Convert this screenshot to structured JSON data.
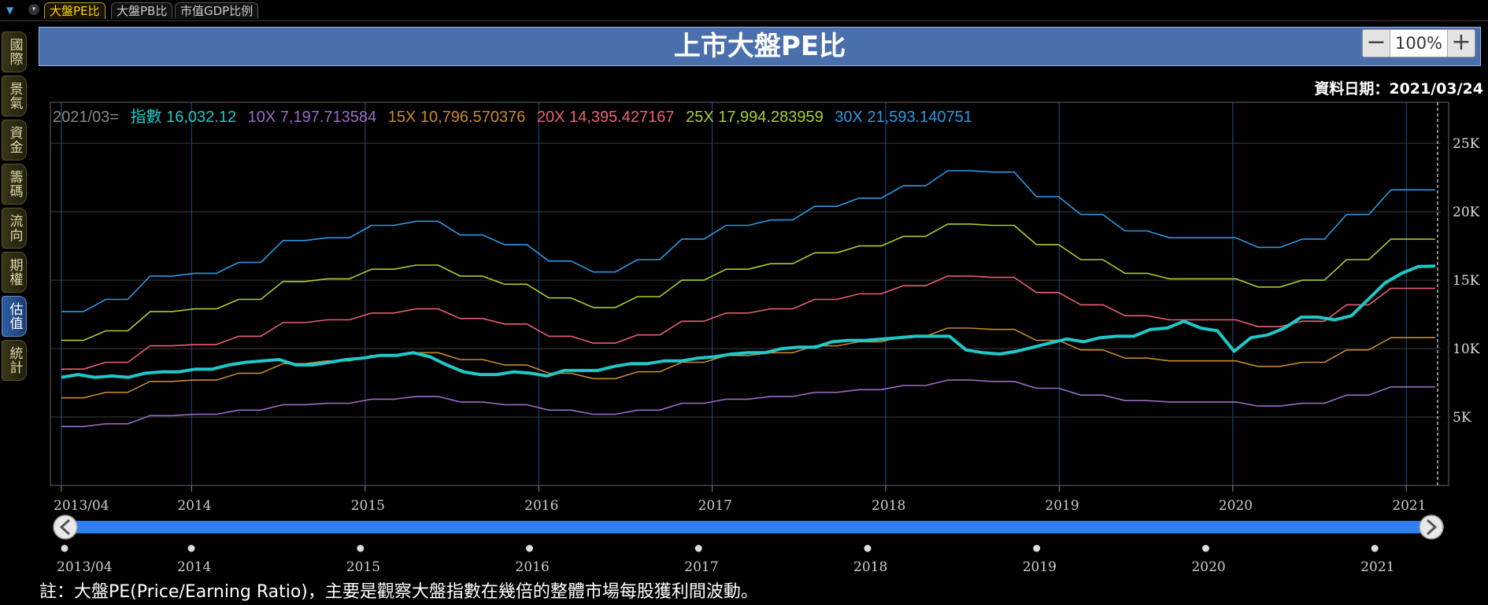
{
  "top_tabs": [
    {
      "label": "大盤PE比",
      "active": true
    },
    {
      "label": "大盤PB比",
      "active": false
    },
    {
      "label": "市值GDP比例",
      "active": false
    }
  ],
  "side_tabs": [
    {
      "label": "國際",
      "active": false
    },
    {
      "label": "景氣",
      "active": false
    },
    {
      "label": "資金",
      "active": false
    },
    {
      "label": "籌碼",
      "active": false
    },
    {
      "label": "流向",
      "active": false
    },
    {
      "label": "期權",
      "active": false
    },
    {
      "label": "估值",
      "active": true
    },
    {
      "label": "統計",
      "active": false
    }
  ],
  "title": "上市大盤PE比",
  "zoom": {
    "minus": "−",
    "level": "100%",
    "plus": "+"
  },
  "data_date": "資料日期：2021/03/24",
  "legend": {
    "prefix": "2021/03=",
    "items": [
      {
        "label": "指數",
        "value": "16,032.12",
        "color": "#20c8c8"
      },
      {
        "label": "10X",
        "value": "7,197.713584",
        "color": "#9b6bc8"
      },
      {
        "label": "15X",
        "value": "10,796.570376",
        "color": "#c88a2a"
      },
      {
        "label": "20X",
        "value": "14,395.427167",
        "color": "#ec5f73"
      },
      {
        "label": "25X",
        "value": "17,994.283959",
        "color": "#a8d030"
      },
      {
        "label": "30X",
        "value": "21,593.140751",
        "color": "#2a9ae8"
      }
    ]
  },
  "chart_data": {
    "type": "line",
    "title": "上市大盤PE比",
    "x_tick_labels": [
      "2013/04",
      "2014",
      "2015",
      "2016",
      "2017",
      "2018",
      "2019",
      "2020",
      "2021"
    ],
    "y_tick_labels": [
      "5K",
      "10K",
      "15K",
      "20K",
      "25K"
    ],
    "ylim": [
      0,
      28000
    ],
    "x_start": "2013/04",
    "x_end": "2021/03",
    "series": [
      {
        "name": "30X",
        "color": "#2a9ae8",
        "values": [
          12700,
          12700,
          13600,
          13600,
          15300,
          15300,
          15500,
          15500,
          16300,
          16300,
          17900,
          17900,
          18100,
          18100,
          19000,
          19000,
          19300,
          19300,
          18300,
          18300,
          17600,
          17600,
          16400,
          16400,
          15600,
          15600,
          16500,
          16500,
          18000,
          18000,
          19000,
          19000,
          19400,
          19400,
          20400,
          20400,
          21000,
          21000,
          21900,
          21900,
          23000,
          23000,
          22900,
          22900,
          21100,
          21100,
          19800,
          19800,
          18600,
          18600,
          18100,
          18100,
          18100,
          18100,
          17400,
          17400,
          18000,
          18000,
          19800,
          19800,
          21600,
          21600,
          21593
        ]
      },
      {
        "name": "25X",
        "color": "#a8d030",
        "values": [
          10600,
          10600,
          11300,
          11300,
          12700,
          12700,
          12900,
          12900,
          13600,
          13600,
          14900,
          14900,
          15100,
          15100,
          15800,
          15800,
          16100,
          16100,
          15300,
          15300,
          14700,
          14700,
          13700,
          13700,
          13000,
          13000,
          13800,
          13800,
          15000,
          15000,
          15800,
          15800,
          16200,
          16200,
          17000,
          17000,
          17500,
          17500,
          18200,
          18200,
          19100,
          19100,
          19000,
          19000,
          17600,
          17600,
          16500,
          16500,
          15500,
          15500,
          15100,
          15100,
          15100,
          15100,
          14500,
          14500,
          15000,
          15000,
          16500,
          16500,
          18000,
          18000,
          17994
        ]
      },
      {
        "name": "20X",
        "color": "#ec5f73",
        "values": [
          8500,
          8500,
          9000,
          9000,
          10200,
          10200,
          10300,
          10300,
          10900,
          10900,
          11900,
          11900,
          12100,
          12100,
          12600,
          12600,
          12900,
          12900,
          12200,
          12200,
          11800,
          11800,
          10900,
          10900,
          10400,
          10400,
          11000,
          11000,
          12000,
          12000,
          12600,
          12600,
          12900,
          12900,
          13600,
          13600,
          14000,
          14000,
          14600,
          14600,
          15300,
          15300,
          15200,
          15200,
          14100,
          14100,
          13200,
          13200,
          12400,
          12400,
          12100,
          12100,
          12100,
          12100,
          11600,
          11600,
          12000,
          12000,
          13200,
          13200,
          14400,
          14400,
          14395
        ]
      },
      {
        "name": "15X",
        "color": "#c88a2a",
        "values": [
          6400,
          6400,
          6800,
          6800,
          7600,
          7600,
          7700,
          7700,
          8200,
          8200,
          8900,
          8900,
          9100,
          9100,
          9500,
          9500,
          9700,
          9700,
          9200,
          9200,
          8800,
          8800,
          8200,
          8200,
          7800,
          7800,
          8300,
          8300,
          9000,
          9000,
          9500,
          9500,
          9700,
          9700,
          10200,
          10200,
          10500,
          10500,
          10900,
          10900,
          11500,
          11500,
          11400,
          11400,
          10600,
          10600,
          9900,
          9900,
          9300,
          9300,
          9100,
          9100,
          9100,
          9100,
          8700,
          8700,
          9000,
          9000,
          9900,
          9900,
          10800,
          10800,
          10797
        ]
      },
      {
        "name": "10X",
        "color": "#9b6bc8",
        "values": [
          4300,
          4300,
          4500,
          4500,
          5100,
          5100,
          5200,
          5200,
          5500,
          5500,
          5900,
          5900,
          6000,
          6000,
          6300,
          6300,
          6500,
          6500,
          6100,
          6100,
          5900,
          5900,
          5500,
          5500,
          5200,
          5200,
          5500,
          5500,
          6000,
          6000,
          6300,
          6300,
          6500,
          6500,
          6800,
          6800,
          7000,
          7000,
          7300,
          7300,
          7700,
          7700,
          7600,
          7600,
          7100,
          7100,
          6600,
          6600,
          6200,
          6200,
          6100,
          6100,
          6100,
          6100,
          5800,
          5800,
          6000,
          6000,
          6600,
          6600,
          7200,
          7200,
          7198
        ]
      },
      {
        "name": "指數",
        "color": "#20c8c8",
        "values": [
          7900,
          8100,
          7900,
          8000,
          7900,
          8200,
          8300,
          8300,
          8500,
          8500,
          8800,
          9000,
          9100,
          9200,
          8800,
          8800,
          9000,
          9200,
          9300,
          9500,
          9500,
          9700,
          9400,
          8800,
          8300,
          8100,
          8100,
          8300,
          8200,
          8000,
          8400,
          8400,
          8400,
          8700,
          8900,
          8900,
          9100,
          9100,
          9300,
          9400,
          9600,
          9700,
          9700,
          10000,
          10100,
          10100,
          10500,
          10600,
          10600,
          10700,
          10800,
          10900,
          10900,
          10900,
          9900,
          9700,
          9600,
          9800,
          10100,
          10400,
          10700,
          10500,
          10800,
          10900,
          10900,
          11400,
          11500,
          12000,
          11500,
          11300,
          9800,
          10800,
          11000,
          11500,
          12300,
          12300,
          12100,
          12400,
          13600,
          14800,
          15500,
          16000,
          16032
        ]
      }
    ]
  },
  "slider": {
    "tick_labels": [
      "2013/04",
      "2014",
      "2015",
      "2016",
      "2017",
      "2018",
      "2019",
      "2020",
      "2021"
    ]
  },
  "note": "註：大盤PE(Price/Earning Ratio)，主要是觀察大盤指數在幾倍的整體市場每股獲利間波動。"
}
